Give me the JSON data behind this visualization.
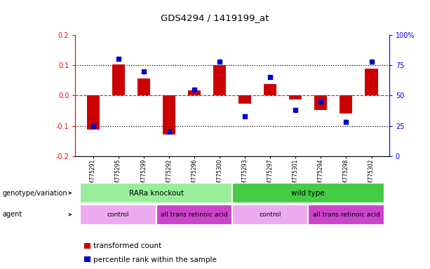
{
  "title": "GDS4294 / 1419199_at",
  "samples": [
    "GSM775291",
    "GSM775295",
    "GSM775299",
    "GSM775292",
    "GSM775296",
    "GSM775300",
    "GSM775293",
    "GSM775297",
    "GSM775301",
    "GSM775294",
    "GSM775298",
    "GSM775302"
  ],
  "bar_values": [
    -0.113,
    0.102,
    0.057,
    -0.128,
    0.018,
    0.1,
    -0.028,
    0.037,
    -0.012,
    -0.048,
    -0.06,
    0.088
  ],
  "dot_values": [
    25,
    80,
    70,
    20,
    55,
    78,
    33,
    65,
    38,
    45,
    28,
    78
  ],
  "bar_color": "#cc0000",
  "dot_color": "#0000cc",
  "ylim_left": [
    -0.2,
    0.2
  ],
  "ylim_right": [
    0,
    100
  ],
  "yticks_left": [
    -0.2,
    -0.1,
    0.0,
    0.1,
    0.2
  ],
  "yticks_right": [
    0,
    25,
    50,
    75,
    100
  ],
  "ytick_labels_right": [
    "0",
    "25",
    "50",
    "75",
    "100%"
  ],
  "genotype_labels": [
    {
      "label": "RARa knockout",
      "start": 0,
      "end": 5,
      "color": "#99ee99"
    },
    {
      "label": "wild type",
      "start": 6,
      "end": 11,
      "color": "#44cc44"
    }
  ],
  "agent_labels": [
    {
      "label": "control",
      "start": 0,
      "end": 2,
      "color": "#eeaaee"
    },
    {
      "label": "all trans retinoic acid",
      "start": 3,
      "end": 5,
      "color": "#cc44cc"
    },
    {
      "label": "control",
      "start": 6,
      "end": 8,
      "color": "#eeaaee"
    },
    {
      "label": "all trans retinoic acid",
      "start": 9,
      "end": 11,
      "color": "#cc44cc"
    }
  ],
  "row_label_genotype": "genotype/variation",
  "row_label_agent": "agent",
  "legend_bar_label": "transformed count",
  "legend_dot_label": "percentile rank within the sample",
  "bar_width": 0.5,
  "background_color": "#ffffff"
}
